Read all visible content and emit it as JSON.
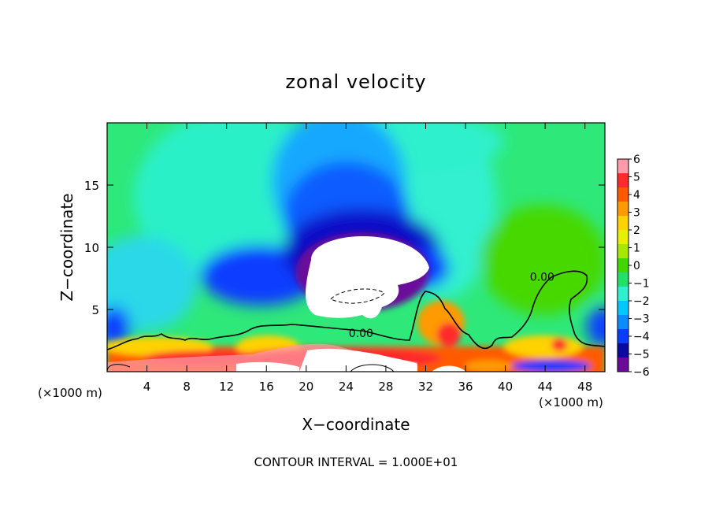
{
  "chart_data": {
    "type": "heatmap",
    "title": "zonal velocity",
    "xlabel": "X−coordinate",
    "ylabel": "Z−coordinate",
    "x_units_left": "(×1000 m)",
    "x_units_right": "(×1000 m)",
    "footer": "CONTOUR INTERVAL = 1.000E+01",
    "xlim": [
      0,
      50
    ],
    "ylim": [
      0,
      20
    ],
    "x_ticks": [
      4,
      8,
      12,
      16,
      20,
      24,
      28,
      32,
      36,
      40,
      44,
      48
    ],
    "x_tick_labels": [
      "4",
      "8",
      "12",
      "16",
      "20",
      "24",
      "28",
      "32",
      "36",
      "40",
      "44",
      "48"
    ],
    "y_ticks": [
      5,
      10,
      15
    ],
    "y_tick_labels": [
      "5",
      "10",
      "15"
    ],
    "colorbar": {
      "min": -6,
      "max": 6,
      "ticks": [
        6,
        5,
        4,
        3,
        2,
        1,
        0,
        -1,
        -2,
        -3,
        -4,
        -5,
        -6
      ],
      "tick_labels": [
        "6",
        "5",
        "4",
        "3",
        "2",
        "1",
        "0",
        "−1",
        "−2",
        "−3",
        "−4",
        "−5",
        "−6"
      ],
      "colors": [
        "#ff9ca8",
        "#ff2a2a",
        "#ff5a00",
        "#ff9a00",
        "#ffd200",
        "#e6f000",
        "#a8e800",
        "#40d800",
        "#22e066",
        "#2ef0cc",
        "#00c8ff",
        "#0a8cff",
        "#0a3cff",
        "#0a0aa0",
        "#6a0a9a"
      ]
    },
    "contour_labels": [
      {
        "text": "0.00",
        "x": 43.7,
        "y": 7.3
      },
      {
        "text": "0.00",
        "x": 25.5,
        "y": 2.8
      }
    ]
  }
}
